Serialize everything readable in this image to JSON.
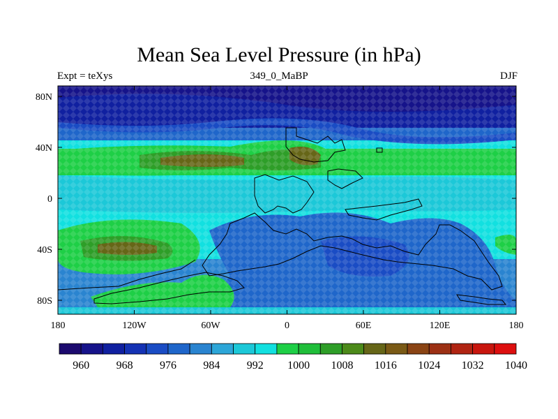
{
  "header": {
    "title": "Mean Sea Level Pressure (in hPa)",
    "left": "Expt = teXys",
    "center": "349_0_MaBP",
    "right": "DJF"
  },
  "axes": {
    "x_ticks": [
      "180",
      "120W",
      "60W",
      "0",
      "60E",
      "120E",
      "180"
    ],
    "y_ticks": [
      "80N",
      "40N",
      "0",
      "40S",
      "80S"
    ]
  },
  "colorbar": {
    "labels": [
      "960",
      "968",
      "976",
      "984",
      "992",
      "1000",
      "1008",
      "1016",
      "1024",
      "1032",
      "1040"
    ],
    "colors": [
      "#1c0a6e",
      "#16138a",
      "#1020a0",
      "#1432b4",
      "#1a4cc4",
      "#1f66ca",
      "#2a84d0",
      "#2ca6d8",
      "#1cc8d8",
      "#12e0e0",
      "#1ecf46",
      "#20be3a",
      "#2e9e28",
      "#4c8a1a",
      "#666618",
      "#7a5a16",
      "#8a4414",
      "#9c3014",
      "#b02412",
      "#c8160e",
      "#dd0f0f"
    ]
  },
  "colors": {
    "ocean_low": "#1f66ca",
    "mid": "#12e0e0",
    "high": "#1ecf46",
    "coast": "#000000"
  }
}
